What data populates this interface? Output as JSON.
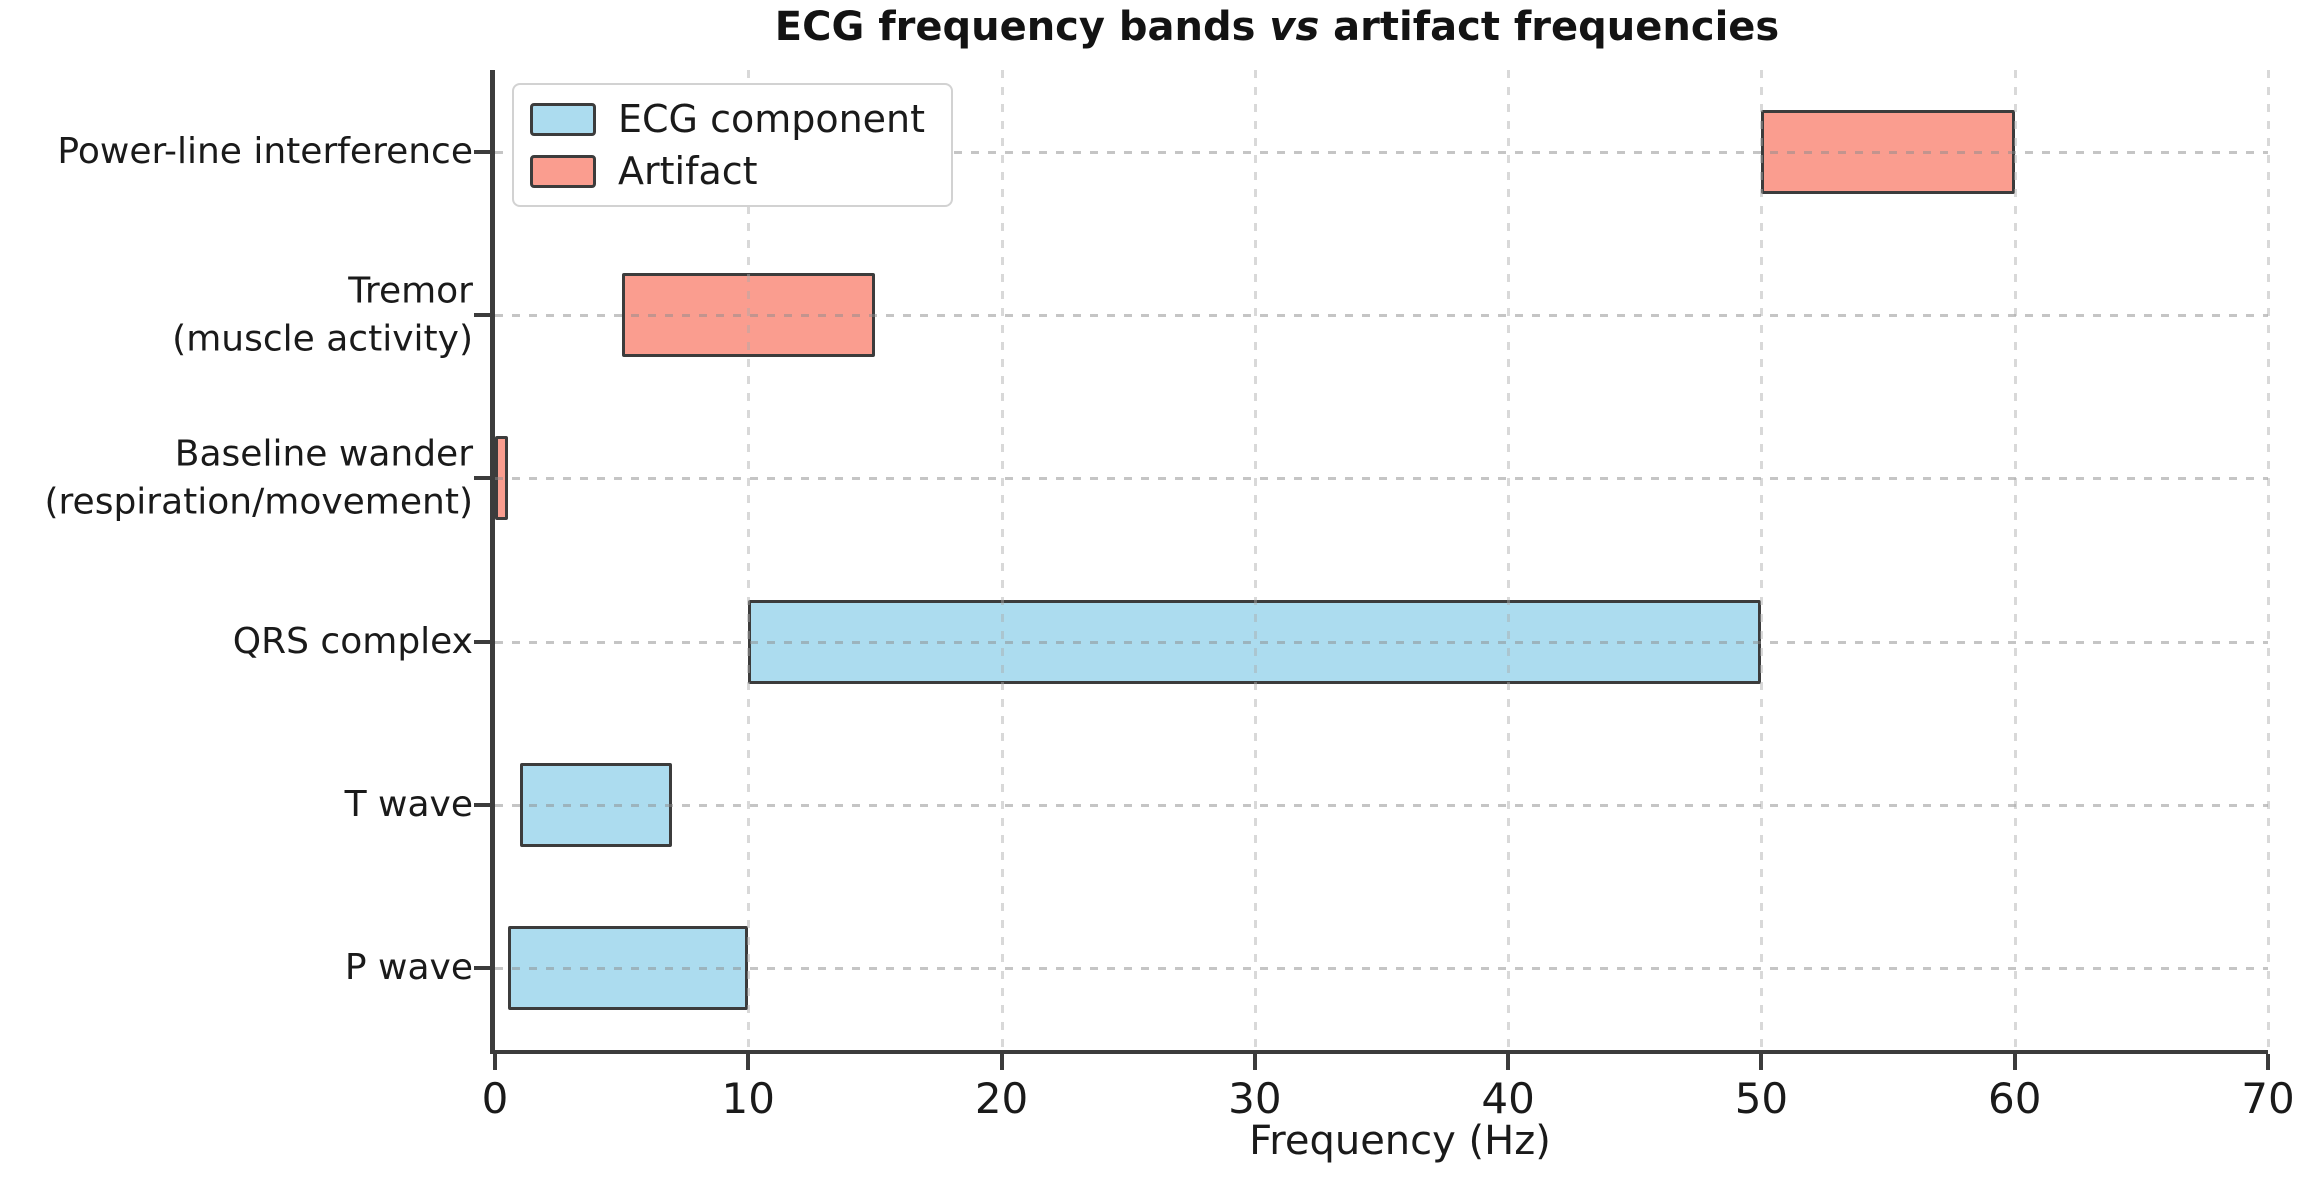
{
  "chart_data": {
    "type": "bar",
    "orientation": "horizontal-range",
    "title": {
      "prefix": "ECG frequency bands ",
      "italic_word": "vs",
      "suffix": " artifact frequencies"
    },
    "xlabel": "Frequency (Hz)",
    "xlim": [
      0,
      70
    ],
    "xticks": [
      0,
      10,
      20,
      30,
      40,
      50,
      60,
      70
    ],
    "grid": "dashed, both axes",
    "legend": {
      "position": "upper-left",
      "entries": [
        {
          "label": "ECG component",
          "series": "ecg"
        },
        {
          "label": "Artifact",
          "series": "artifact"
        }
      ]
    },
    "series_colors": {
      "ecg": "#ACDCEF",
      "artifact": "#FA9D8F",
      "edge": "#3C3C3C"
    },
    "categories": [
      {
        "label_lines": [
          "Power-line interference"
        ],
        "series": "artifact",
        "range_hz": [
          50,
          60
        ]
      },
      {
        "label_lines": [
          "Tremor",
          "(muscle activity)"
        ],
        "series": "artifact",
        "range_hz": [
          5,
          15
        ]
      },
      {
        "label_lines": [
          "Baseline wander",
          "(respiration/movement)"
        ],
        "series": "artifact",
        "range_hz": [
          0,
          0.5
        ]
      },
      {
        "label_lines": [
          "QRS complex"
        ],
        "series": "ecg",
        "range_hz": [
          10,
          50
        ]
      },
      {
        "label_lines": [
          "T wave"
        ],
        "series": "ecg",
        "range_hz": [
          1,
          7
        ]
      },
      {
        "label_lines": [
          "P wave"
        ],
        "series": "ecg",
        "range_hz": [
          0.5,
          10
        ]
      }
    ]
  }
}
